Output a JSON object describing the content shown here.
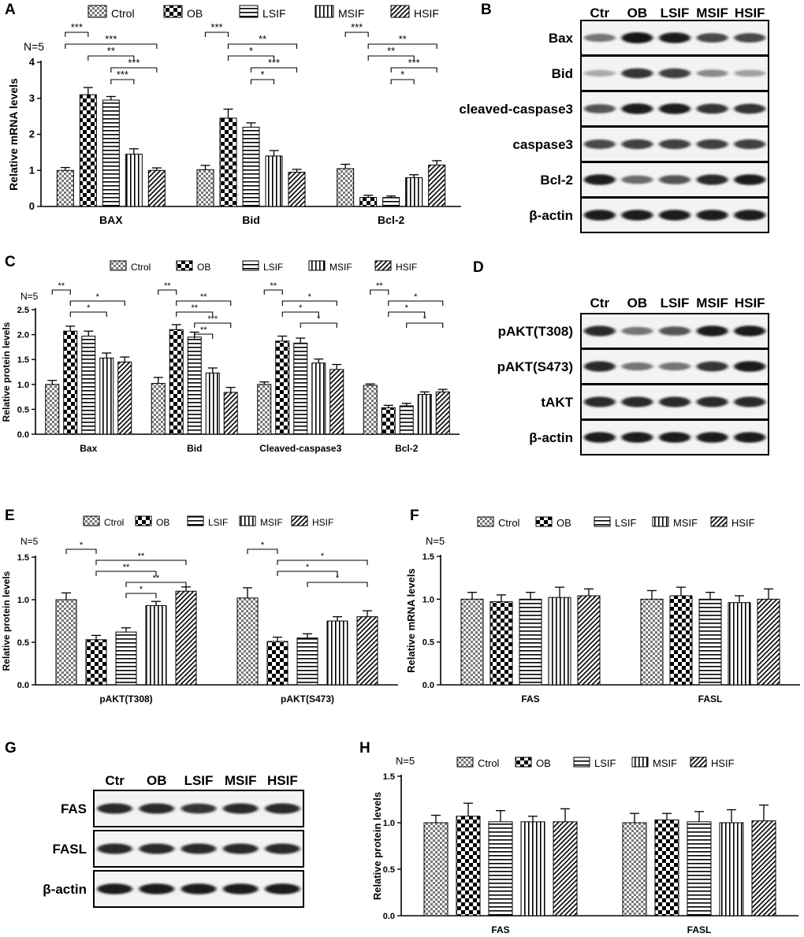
{
  "groups": [
    "Ctrol",
    "OB",
    "LSIF",
    "MSIF",
    "HSIF"
  ],
  "blot_lanes": [
    "Ctr",
    "OB",
    "LSIF",
    "MSIF",
    "HSIF"
  ],
  "chart_data": [
    {
      "panel": "A",
      "type": "bar",
      "n_label": "N=5",
      "ylabel": "Relative mRNA levels",
      "ylim": [
        0,
        4
      ],
      "yticks": [
        "0",
        "1",
        "2",
        "3",
        "4"
      ],
      "categories": [
        "BAX",
        "Bid",
        "Bcl-2"
      ],
      "series": [
        {
          "name": "Ctrol",
          "values": [
            1.0,
            1.02,
            1.05
          ],
          "errors": [
            0.08,
            0.12,
            0.12
          ]
        },
        {
          "name": "OB",
          "values": [
            3.1,
            2.45,
            0.25
          ],
          "errors": [
            0.2,
            0.25,
            0.06
          ]
        },
        {
          "name": "LSIF",
          "values": [
            2.95,
            2.2,
            0.25
          ],
          "errors": [
            0.1,
            0.12,
            0.04
          ]
        },
        {
          "name": "MSIF",
          "values": [
            1.45,
            1.4,
            0.8
          ],
          "errors": [
            0.15,
            0.15,
            0.08
          ]
        },
        {
          "name": "HSIF",
          "values": [
            1.0,
            0.95,
            1.15
          ],
          "errors": [
            0.07,
            0.08,
            0.12
          ]
        }
      ],
      "significance": [
        {
          "cat": 0,
          "from": 0,
          "to": 1,
          "label": "***"
        },
        {
          "cat": 0,
          "from": 0,
          "to": 4,
          "label": "***"
        },
        {
          "cat": 0,
          "from": 1,
          "to": 3,
          "label": "**"
        },
        {
          "cat": 0,
          "from": 2,
          "to": 4,
          "label": "***"
        },
        {
          "cat": 0,
          "from": 2,
          "to": 3,
          "label": "***"
        },
        {
          "cat": 1,
          "from": 0,
          "to": 1,
          "label": "***"
        },
        {
          "cat": 1,
          "from": 1,
          "to": 4,
          "label": "**"
        },
        {
          "cat": 1,
          "from": 1,
          "to": 3,
          "label": "*"
        },
        {
          "cat": 1,
          "from": 2,
          "to": 4,
          "label": "***"
        },
        {
          "cat": 1,
          "from": 2,
          "to": 3,
          "label": "*"
        },
        {
          "cat": 2,
          "from": 0,
          "to": 1,
          "label": "***"
        },
        {
          "cat": 2,
          "from": 1,
          "to": 4,
          "label": "**"
        },
        {
          "cat": 2,
          "from": 1,
          "to": 3,
          "label": "**"
        },
        {
          "cat": 2,
          "from": 2,
          "to": 4,
          "label": "***"
        },
        {
          "cat": 2,
          "from": 2,
          "to": 3,
          "label": "*"
        }
      ]
    },
    {
      "panel": "C",
      "type": "bar",
      "n_label": "N=5",
      "ylabel": "Relative protein levels",
      "ylim": [
        0,
        2.5
      ],
      "yticks": [
        "0.0",
        "0.5",
        "1.0",
        "1.5",
        "2.0",
        "2.5"
      ],
      "categories": [
        "Bax",
        "Bid",
        "Cleaved-caspase3",
        "Bcl-2"
      ],
      "series": [
        {
          "name": "Ctrol",
          "values": [
            1.0,
            1.02,
            1.0,
            0.98
          ],
          "errors": [
            0.08,
            0.12,
            0.05,
            0.03
          ]
        },
        {
          "name": "OB",
          "values": [
            2.07,
            2.1,
            1.87,
            0.53
          ],
          "errors": [
            0.1,
            0.1,
            0.1,
            0.05
          ]
        },
        {
          "name": "LSIF",
          "values": [
            1.97,
            1.95,
            1.83,
            0.57
          ],
          "errors": [
            0.1,
            0.1,
            0.1,
            0.05
          ]
        },
        {
          "name": "MSIF",
          "values": [
            1.53,
            1.23,
            1.43,
            0.8
          ],
          "errors": [
            0.1,
            0.1,
            0.08,
            0.05
          ]
        },
        {
          "name": "HSIF",
          "values": [
            1.45,
            0.84,
            1.3,
            0.85
          ],
          "errors": [
            0.1,
            0.1,
            0.1,
            0.05
          ]
        }
      ],
      "significance": [
        {
          "cat": 0,
          "from": 0,
          "to": 1,
          "label": "**"
        },
        {
          "cat": 0,
          "from": 1,
          "to": 4,
          "label": "*"
        },
        {
          "cat": 0,
          "from": 1,
          "to": 3,
          "label": "*"
        },
        {
          "cat": 1,
          "from": 0,
          "to": 1,
          "label": "**"
        },
        {
          "cat": 1,
          "from": 1,
          "to": 4,
          "label": "**"
        },
        {
          "cat": 1,
          "from": 1,
          "to": 3,
          "label": "**"
        },
        {
          "cat": 1,
          "from": 2,
          "to": 4,
          "label": "***"
        },
        {
          "cat": 1,
          "from": 2,
          "to": 3,
          "label": "**"
        },
        {
          "cat": 2,
          "from": 0,
          "to": 1,
          "label": "**"
        },
        {
          "cat": 2,
          "from": 1,
          "to": 4,
          "label": "*"
        },
        {
          "cat": 2,
          "from": 1,
          "to": 3,
          "label": "*"
        },
        {
          "cat": 2,
          "from": 2,
          "to": 4,
          "label": "*"
        },
        {
          "cat": 3,
          "from": 0,
          "to": 1,
          "label": "**"
        },
        {
          "cat": 3,
          "from": 1,
          "to": 4,
          "label": "*"
        },
        {
          "cat": 3,
          "from": 1,
          "to": 3,
          "label": "*"
        },
        {
          "cat": 3,
          "from": 2,
          "to": 4,
          "label": "*"
        }
      ]
    },
    {
      "panel": "E",
      "type": "bar",
      "n_label": "N=5",
      "ylabel": "Relative protein levels",
      "ylim": [
        0,
        1.5
      ],
      "yticks": [
        "0.0",
        "0.5",
        "1.0",
        "1.5"
      ],
      "categories": [
        "pAKT(T308)",
        "pAKT(S473)"
      ],
      "series": [
        {
          "name": "Ctrol",
          "values": [
            1.0,
            1.02
          ],
          "errors": [
            0.08,
            0.12
          ]
        },
        {
          "name": "OB",
          "values": [
            0.53,
            0.51
          ],
          "errors": [
            0.05,
            0.05
          ]
        },
        {
          "name": "LSIF",
          "values": [
            0.62,
            0.55
          ],
          "errors": [
            0.05,
            0.05
          ]
        },
        {
          "name": "MSIF",
          "values": [
            0.93,
            0.75
          ],
          "errors": [
            0.05,
            0.05
          ]
        },
        {
          "name": "HSIF",
          "values": [
            1.1,
            0.8
          ],
          "errors": [
            0.05,
            0.07
          ]
        }
      ],
      "significance": [
        {
          "cat": 0,
          "from": 0,
          "to": 1,
          "label": "*"
        },
        {
          "cat": 0,
          "from": 1,
          "to": 4,
          "label": "**"
        },
        {
          "cat": 0,
          "from": 1,
          "to": 3,
          "label": "**"
        },
        {
          "cat": 0,
          "from": 2,
          "to": 4,
          "label": "**"
        },
        {
          "cat": 0,
          "from": 2,
          "to": 3,
          "label": "*"
        },
        {
          "cat": 1,
          "from": 0,
          "to": 1,
          "label": "*"
        },
        {
          "cat": 1,
          "from": 1,
          "to": 4,
          "label": "*"
        },
        {
          "cat": 1,
          "from": 1,
          "to": 3,
          "label": "*"
        },
        {
          "cat": 1,
          "from": 2,
          "to": 4,
          "label": "*"
        }
      ]
    },
    {
      "panel": "F",
      "type": "bar",
      "n_label": "N=5",
      "ylabel": "Relative mRNA levels",
      "ylim": [
        0,
        1.5
      ],
      "yticks": [
        "0.0",
        "0.5",
        "1.0",
        "1.5"
      ],
      "categories": [
        "FAS",
        "FASL"
      ],
      "series": [
        {
          "name": "Ctrol",
          "values": [
            1.0,
            1.0
          ],
          "errors": [
            0.08,
            0.1
          ]
        },
        {
          "name": "OB",
          "values": [
            0.97,
            1.04
          ],
          "errors": [
            0.08,
            0.1
          ]
        },
        {
          "name": "LSIF",
          "values": [
            1.0,
            1.0
          ],
          "errors": [
            0.08,
            0.08
          ]
        },
        {
          "name": "MSIF",
          "values": [
            1.02,
            0.96
          ],
          "errors": [
            0.12,
            0.08
          ]
        },
        {
          "name": "HSIF",
          "values": [
            1.04,
            1.0
          ],
          "errors": [
            0.08,
            0.12
          ]
        }
      ],
      "significance": []
    },
    {
      "panel": "H",
      "type": "bar",
      "n_label": "N=5",
      "ylabel": "Relative protein levels",
      "ylim": [
        0,
        1.5
      ],
      "yticks": [
        "0.0",
        "0.5",
        "1.0",
        "1.5"
      ],
      "categories": [
        "FAS",
        "FASL"
      ],
      "series": [
        {
          "name": "Ctrol",
          "values": [
            1.0,
            1.0
          ],
          "errors": [
            0.08,
            0.1
          ]
        },
        {
          "name": "OB",
          "values": [
            1.07,
            1.03
          ],
          "errors": [
            0.14,
            0.07
          ]
        },
        {
          "name": "LSIF",
          "values": [
            1.01,
            1.01
          ],
          "errors": [
            0.12,
            0.11
          ]
        },
        {
          "name": "MSIF",
          "values": [
            1.01,
            1.0
          ],
          "errors": [
            0.06,
            0.14
          ]
        },
        {
          "name": "HSIF",
          "values": [
            1.01,
            1.02
          ],
          "errors": [
            0.14,
            0.17
          ]
        }
      ],
      "significance": []
    }
  ],
  "blots": [
    {
      "panel": "B",
      "rows": [
        {
          "label": "Bax",
          "intensity": [
            0.55,
            1.0,
            0.95,
            0.75,
            0.75
          ]
        },
        {
          "label": "Bid",
          "intensity": [
            0.3,
            0.85,
            0.8,
            0.45,
            0.35
          ]
        },
        {
          "label": "cleaved-caspase3",
          "intensity": [
            0.7,
            0.95,
            0.95,
            0.85,
            0.85
          ]
        },
        {
          "label": "caspase3",
          "intensity": [
            0.75,
            0.8,
            0.8,
            0.8,
            0.8
          ]
        },
        {
          "label": "Bcl-2",
          "intensity": [
            0.95,
            0.6,
            0.7,
            0.9,
            0.95
          ]
        },
        {
          "label": "β-actin",
          "intensity": [
            0.95,
            0.95,
            0.95,
            0.95,
            0.95
          ]
        }
      ]
    },
    {
      "panel": "D",
      "rows": [
        {
          "label": "pAKT(T308)",
          "intensity": [
            0.9,
            0.55,
            0.7,
            0.95,
            0.95
          ]
        },
        {
          "label": "pAKT(S473)",
          "intensity": [
            0.9,
            0.55,
            0.55,
            0.85,
            0.95
          ]
        },
        {
          "label": "tAKT",
          "intensity": [
            0.9,
            0.9,
            0.9,
            0.9,
            0.9
          ]
        },
        {
          "label": "β-actin",
          "intensity": [
            0.95,
            0.95,
            0.95,
            0.95,
            0.95
          ]
        }
      ]
    },
    {
      "panel": "G",
      "rows": [
        {
          "label": "FAS",
          "intensity": [
            0.9,
            0.9,
            0.85,
            0.9,
            0.9
          ]
        },
        {
          "label": "FASL",
          "intensity": [
            0.9,
            0.9,
            0.9,
            0.9,
            0.9
          ]
        },
        {
          "label": "β-actin",
          "intensity": [
            0.95,
            0.95,
            0.95,
            0.95,
            0.95
          ]
        }
      ]
    }
  ]
}
